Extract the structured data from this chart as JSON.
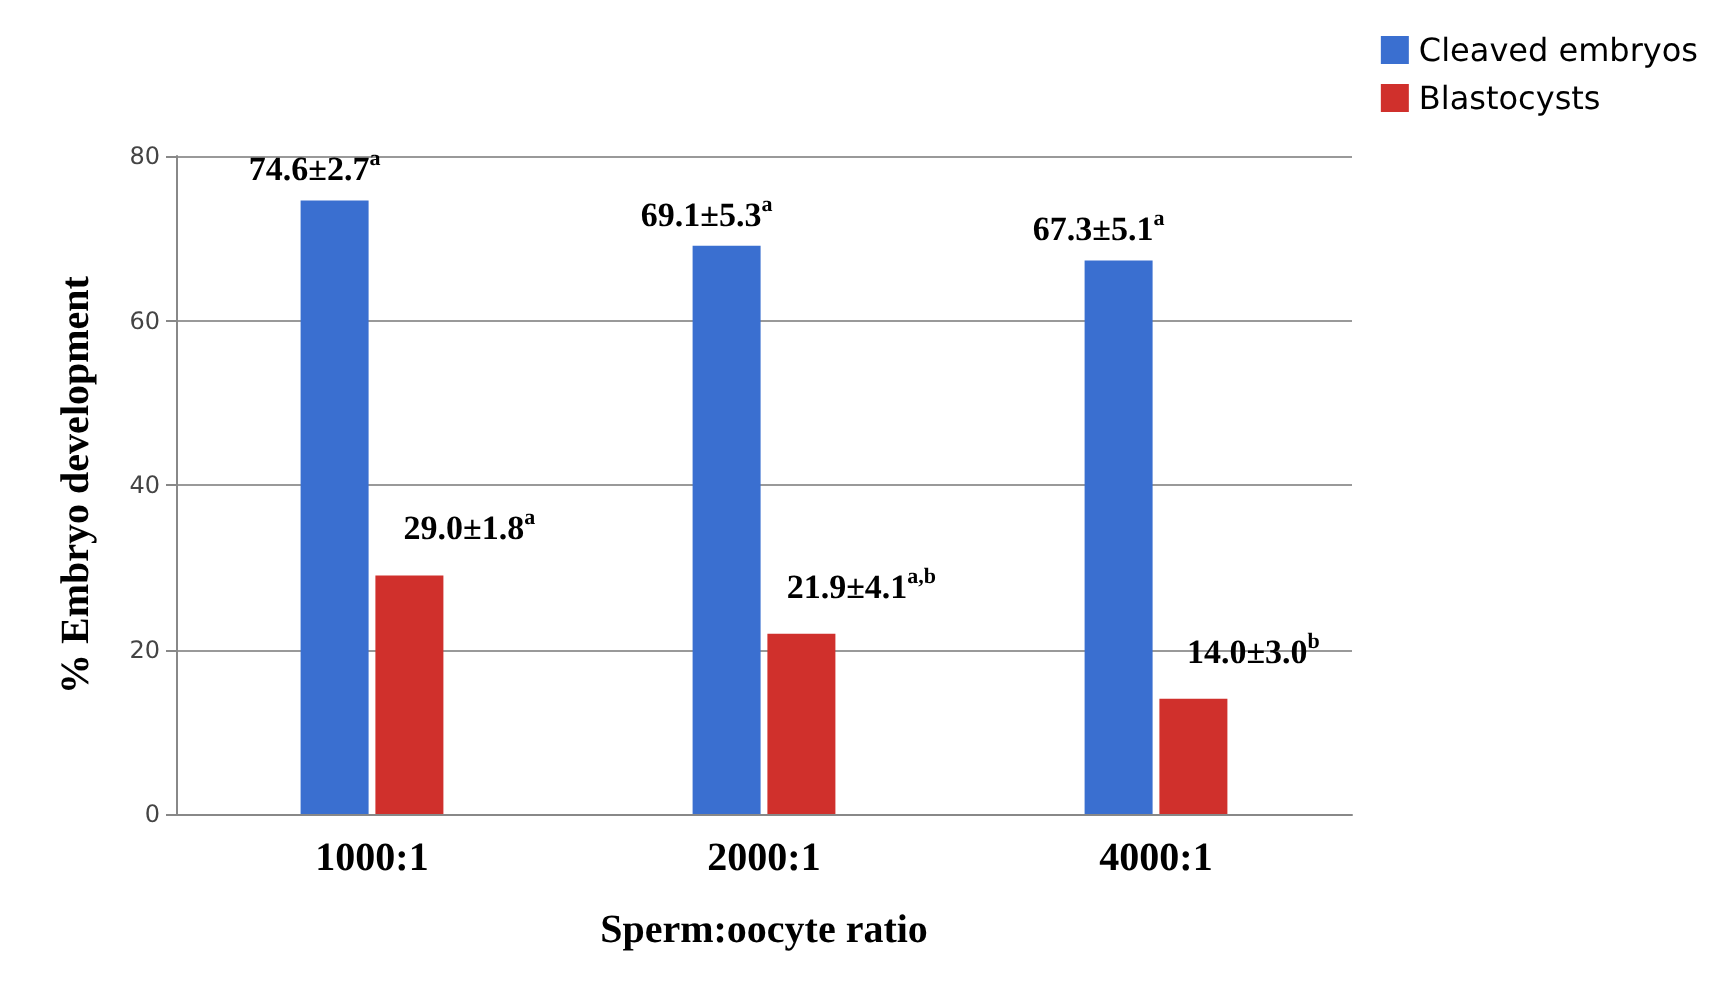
{
  "chart_data": {
    "type": "bar",
    "xlabel": "Sperm:oocyte ratio",
    "ylabel": "% Embryo development",
    "categories": [
      "1000:1",
      "2000:1",
      "4000:1"
    ],
    "series": [
      {
        "name": "Cleaved embryos",
        "color": "#3a6fd0",
        "values": [
          74.6,
          69.1,
          67.3
        ],
        "value_labels": [
          "74.6±2.7$^{a}$",
          "69.1±5.3$^{a}$",
          "67.3±5.1$^{a}$"
        ]
      },
      {
        "name": "Blastocysts",
        "color": "#d0302c",
        "values": [
          29.0,
          21.9,
          14.0
        ],
        "value_labels": [
          "29.0±1.8$^{a}$",
          "21.9±4.1$^{a,b}$",
          "14.0±3.0$^{b}$"
        ]
      }
    ],
    "ylim": [
      0,
      80
    ],
    "yticks": [
      0,
      20,
      40,
      60,
      80
    ],
    "grid": "y",
    "legend": "top right"
  }
}
